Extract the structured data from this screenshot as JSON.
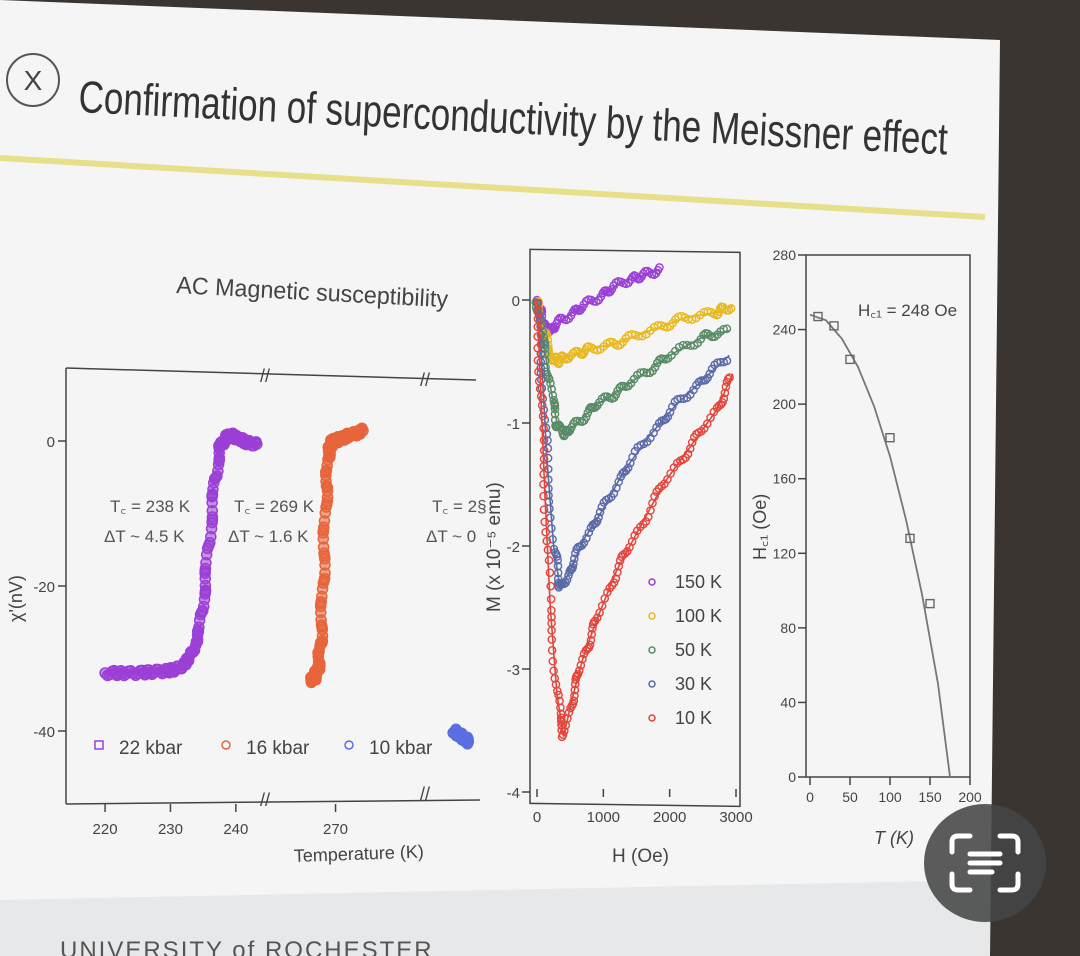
{
  "slide": {
    "badge": "X",
    "title": "Confirmation of superconductivity by the Meissner effect",
    "footer": "UNIVERSITY of ROCHESTER"
  },
  "colors": {
    "purple": "#9b3fd6",
    "orange": "#e8643a",
    "blue": "#5a6fe0",
    "gold": "#e8b820",
    "green": "#5a8a66",
    "slate": "#5a6aa8",
    "red": "#e4443a",
    "accent_line": "#e6e08a"
  },
  "chart_data": [
    {
      "type": "scatter",
      "title": "AC Magnetic susceptibility",
      "xlabel": "Temperature (K)",
      "ylabel": "χ'(nV)",
      "yticks": [
        "0",
        "-20",
        "-40"
      ],
      "xticks": [
        "220",
        "230",
        "240",
        "270"
      ],
      "ylim": [
        -50,
        8
      ],
      "axis_breaks": true,
      "annotations": [
        {
          "line1": "T꜀ = 238 K",
          "line2": "ΔT ~ 4.5 K"
        },
        {
          "line1": "T꜀ = 269 K",
          "line2": "ΔT ~ 1.6 K"
        },
        {
          "line1": "T꜀ = 2§",
          "line2": "ΔT ~ 0"
        }
      ],
      "legend": [
        "22 kbar",
        "16 kbar",
        "10 kbar"
      ],
      "series": [
        {
          "name": "22 kbar",
          "color": "#9b3fd6",
          "x": [
            220,
            224,
            228,
            231,
            233,
            234.5,
            235.5,
            236.5,
            237.5,
            238.5,
            239.5,
            241,
            243
          ],
          "y": [
            -32,
            -32,
            -31.8,
            -31.5,
            -30,
            -26,
            -18,
            -8,
            -1,
            0.5,
            0.8,
            0,
            -0.5
          ]
        },
        {
          "name": "16 kbar",
          "color": "#e8643a",
          "x": [
            265,
            265.8,
            266.5,
            267,
            267.5,
            268,
            268.5,
            269,
            269.5,
            270,
            271,
            273,
            276
          ],
          "y": [
            -33,
            -32.5,
            -31,
            -27,
            -18,
            -8,
            -2,
            -0.5,
            0,
            0,
            0.3,
            0.8,
            1.5
          ]
        },
        {
          "name": "10 kbar",
          "color": "#5a6fe0",
          "x": [
            300,
            301,
            302,
            303
          ],
          "y": [
            -40,
            -40.5,
            -41,
            -41.5
          ]
        }
      ]
    },
    {
      "type": "line",
      "xlabel": "H (Oe)",
      "ylabel": "M (x 10⁻⁵ emu)",
      "xticks": [
        "0",
        "1000",
        "2000",
        "3000"
      ],
      "yticks": [
        "0",
        "-1",
        "-2",
        "-3",
        "-4"
      ],
      "xlim": [
        0,
        3000
      ],
      "ylim": [
        -4,
        0.25
      ],
      "legend": [
        "150 K",
        "100 K",
        "50 K",
        "30 K",
        "10 K"
      ],
      "series": [
        {
          "name": "150 K",
          "color": "#9b3fd6",
          "x": [
            0,
            100,
            200,
            400,
            700,
            1000,
            1300,
            1600,
            1850
          ],
          "y": [
            0,
            -0.2,
            -0.25,
            -0.15,
            -0.05,
            0.05,
            0.15,
            0.2,
            0.25
          ]
        },
        {
          "name": "100 K",
          "color": "#e8b820",
          "x": [
            0,
            100,
            200,
            300,
            500,
            800,
            1200,
            1700,
            2200,
            2700,
            2950
          ],
          "y": [
            0,
            -0.25,
            -0.45,
            -0.5,
            -0.45,
            -0.4,
            -0.35,
            -0.25,
            -0.15,
            -0.1,
            -0.05
          ]
        },
        {
          "name": "50 K",
          "color": "#5a8a66",
          "x": [
            0,
            100,
            200,
            300,
            400,
            600,
            900,
            1200,
            1600,
            2000,
            2500,
            2900
          ],
          "y": [
            0,
            -0.35,
            -0.7,
            -1.0,
            -1.1,
            -1.0,
            -0.85,
            -0.75,
            -0.6,
            -0.45,
            -0.3,
            -0.25
          ]
        },
        {
          "name": "30 K",
          "color": "#5a6aa8",
          "x": [
            0,
            80,
            150,
            250,
            350,
            500,
            700,
            1000,
            1300,
            1700,
            2100,
            2500,
            2900
          ],
          "y": [
            0,
            -0.6,
            -1.3,
            -2.0,
            -2.35,
            -2.2,
            -1.95,
            -1.7,
            -1.4,
            -1.1,
            -0.85,
            -0.65,
            -0.45
          ]
        },
        {
          "name": "10 K",
          "color": "#e4443a",
          "x": [
            0,
            60,
            120,
            200,
            300,
            400,
            550,
            700,
            900,
            1200,
            1500,
            1900,
            2300,
            2700,
            2950
          ],
          "y": [
            0,
            -0.8,
            -1.6,
            -2.5,
            -3.2,
            -3.55,
            -3.2,
            -2.9,
            -2.6,
            -2.2,
            -1.9,
            -1.5,
            -1.2,
            -0.9,
            -0.6
          ]
        }
      ]
    },
    {
      "type": "scatter",
      "annotation": "H꜀₁ = 248 Oe",
      "xlabel": "T (K)",
      "ylabel": "H꜀₁ (Oe)",
      "xticks": [
        "0",
        "50",
        "100",
        "150",
        "200"
      ],
      "yticks": [
        "0",
        "40",
        "80",
        "120",
        "160",
        "200",
        "240",
        "280"
      ],
      "xlim": [
        0,
        200
      ],
      "ylim": [
        0,
        280
      ],
      "points": {
        "x": [
          10,
          30,
          50,
          100,
          125,
          150
        ],
        "y": [
          247,
          242,
          224,
          182,
          128,
          93
        ]
      },
      "fit": {
        "x": [
          0,
          20,
          40,
          60,
          80,
          100,
          120,
          140,
          160,
          175
        ],
        "y": [
          248,
          245,
          235,
          220,
          199,
          172,
          138,
          98,
          50,
          0
        ]
      }
    }
  ]
}
